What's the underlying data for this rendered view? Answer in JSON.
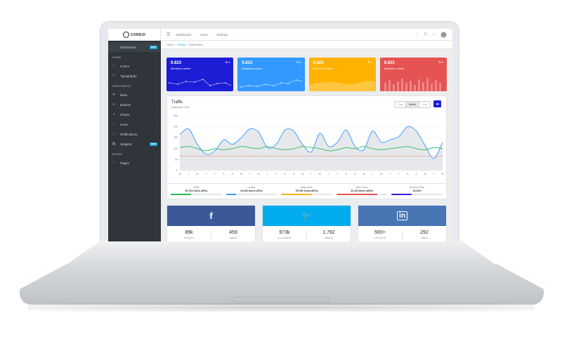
{
  "brand": {
    "name": "COREUI"
  },
  "sidebar": {
    "dashboard": {
      "label": "Dashboard",
      "badge": "NEW"
    },
    "sections": {
      "theme": "THEME",
      "components": "COMPONENTS",
      "extras": "EXTRAS"
    },
    "theme_items": [
      {
        "label": "Colors",
        "icon": "drop-icon"
      },
      {
        "label": "Typography",
        "icon": "pencil-icon"
      }
    ],
    "component_items": [
      {
        "label": "Base",
        "icon": "puzzle-icon"
      },
      {
        "label": "Buttons",
        "icon": "cursor-icon"
      },
      {
        "label": "Charts",
        "icon": "pie-chart-icon"
      },
      {
        "label": "Icons",
        "icon": "star-icon"
      },
      {
        "label": "Notifications",
        "icon": "bell-icon"
      },
      {
        "label": "Widgets",
        "icon": "calculator-icon",
        "badge": "NEW"
      }
    ],
    "extras_items": [
      {
        "label": "Pages",
        "icon": "star-icon"
      }
    ]
  },
  "topbar": {
    "links": [
      "Dashboard",
      "Users",
      "Settings"
    ]
  },
  "breadcrumb": {
    "home": "Home",
    "admin": "Admin",
    "current": "Dashboard"
  },
  "cards": [
    {
      "value": "9.823",
      "label": "Members online",
      "color": "#1d1dd6"
    },
    {
      "value": "9.823",
      "label": "Members online",
      "color": "#3399ff"
    },
    {
      "value": "9.823",
      "label": "Members online",
      "color": "#ffb300"
    },
    {
      "value": "9.823",
      "label": "Members online",
      "color": "#e55353"
    }
  ],
  "traffic": {
    "title": "Traffic",
    "subtitle": "September 2019",
    "periods": [
      "Day",
      "Month",
      "Year"
    ],
    "selected_period": "Month"
  },
  "chart_data": {
    "type": "line",
    "ylim": [
      0,
      250
    ],
    "yticks": [
      "250",
      "200",
      "150",
      "100",
      "50",
      "0"
    ],
    "categories": [
      "M",
      "T",
      "W",
      "T",
      "F",
      "S",
      "S",
      "M",
      "T",
      "W",
      "T",
      "F",
      "S",
      "S",
      "M",
      "T",
      "W",
      "T",
      "F",
      "S",
      "S",
      "M",
      "T",
      "W",
      "T",
      "F",
      "S",
      "S",
      "M",
      "T",
      "W"
    ],
    "series": [
      {
        "color": "#3399ff",
        "values": [
          165,
          190,
          120,
          75,
          90,
          140,
          120,
          150,
          190,
          175,
          105,
          120,
          185,
          180,
          120,
          85,
          170,
          110,
          130,
          185,
          110,
          95,
          180,
          130,
          140,
          155,
          200,
          180,
          115,
          55,
          130
        ]
      },
      {
        "color": "#2eb85c",
        "values": [
          105,
          110,
          100,
          90,
          100,
          95,
          100,
          110,
          105,
          100,
          110,
          100,
          95,
          100,
          110,
          105,
          100,
          90,
          95,
          105,
          100,
          110,
          100,
          95,
          100,
          105,
          110,
          100,
          95,
          105,
          100
        ]
      },
      {
        "color": "#e55353",
        "values": [
          65,
          65,
          65,
          65,
          65,
          65,
          65,
          65,
          65,
          65,
          65,
          65,
          65,
          65,
          65,
          65,
          65,
          65,
          65,
          65,
          65,
          65,
          65,
          65,
          65,
          65,
          65,
          65,
          65,
          65,
          65
        ]
      }
    ]
  },
  "stats": [
    {
      "label": "Visits",
      "value": "29.703 Users (40%)",
      "percent": 40,
      "color": "#2eb85c"
    },
    {
      "label": "Unique",
      "value": "24.093 Users (20%)",
      "percent": 20,
      "color": "#39f"
    },
    {
      "label": "Pageviews",
      "value": "78.706 Views (60%)",
      "percent": 60,
      "color": "#f9b115"
    },
    {
      "label": "New Users",
      "value": "22.123 Users (80%)",
      "percent": 80,
      "color": "#e55353"
    },
    {
      "label": "Bounce Rate",
      "value": "40.15%",
      "percent": 40,
      "color": "#321fdb"
    }
  ],
  "socials": [
    {
      "icon": "facebook-icon",
      "glyph": "f",
      "color": "#3b5998",
      "left_value": "89k",
      "left_label": "FRIENDS",
      "right_value": "459",
      "right_label": "FEEDS"
    },
    {
      "icon": "twitter-icon",
      "glyph": "🐦",
      "color": "#00aced",
      "left_value": "973k",
      "left_label": "FOLLOWERS",
      "right_value": "1.792",
      "right_label": "TWEETS"
    },
    {
      "icon": "linkedin-icon",
      "glyph": "in",
      "color": "#4875b4",
      "left_value": "500+",
      "left_label": "CONTACTS",
      "right_value": "292",
      "right_label": "FEEDS"
    }
  ]
}
